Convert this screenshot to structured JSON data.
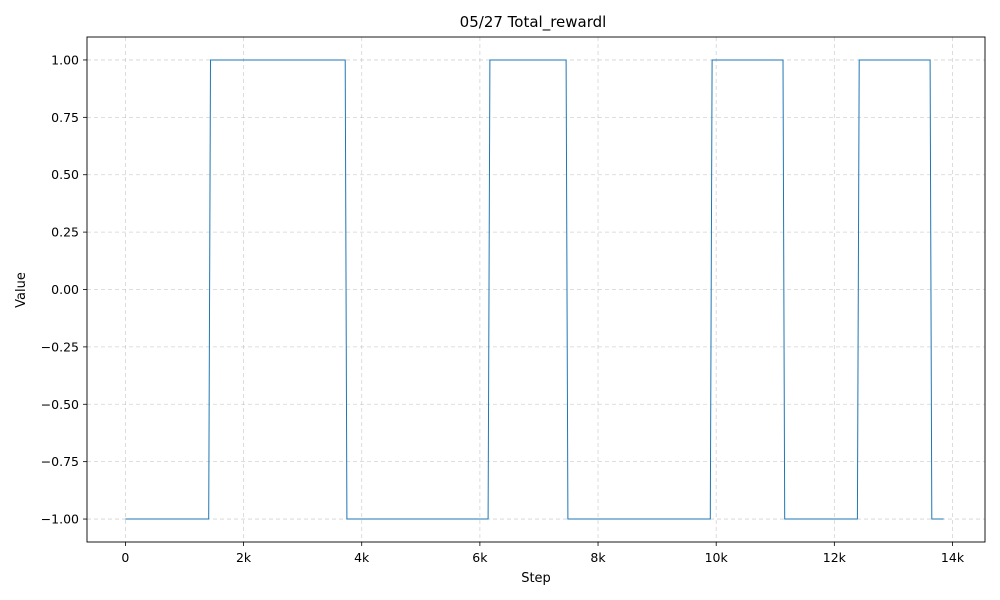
{
  "chart_data": {
    "type": "line",
    "title": "05/27  Total_rewardl",
    "xlabel": "Step",
    "ylabel": "Value",
    "xlim": [
      -650,
      14550
    ],
    "ylim": [
      -1.1,
      1.1
    ],
    "grid": true,
    "x_ticks": [
      {
        "value": 0,
        "label": "0"
      },
      {
        "value": 2000,
        "label": "2k"
      },
      {
        "value": 4000,
        "label": "4k"
      },
      {
        "value": 6000,
        "label": "6k"
      },
      {
        "value": 8000,
        "label": "8k"
      },
      {
        "value": 10000,
        "label": "10k"
      },
      {
        "value": 12000,
        "label": "12k"
      },
      {
        "value": 14000,
        "label": "14k"
      }
    ],
    "y_ticks": [
      {
        "value": 1.0,
        "label": "1.00"
      },
      {
        "value": 0.75,
        "label": "0.75"
      },
      {
        "value": 0.5,
        "label": "0.50"
      },
      {
        "value": 0.25,
        "label": "0.25"
      },
      {
        "value": 0.0,
        "label": "0.00"
      },
      {
        "value": -0.25,
        "label": "−0.25"
      },
      {
        "value": -0.5,
        "label": "−0.50"
      },
      {
        "value": -0.75,
        "label": "−0.75"
      },
      {
        "value": -1.0,
        "label": "−1.00"
      }
    ],
    "series": [
      {
        "color": "#1f77b4",
        "x": [
          0,
          1410,
          1440,
          3720,
          3750,
          6140,
          6170,
          7460,
          7490,
          9900,
          9930,
          11130,
          11160,
          12390,
          12420,
          13620,
          13650,
          13850
        ],
        "y": [
          -1,
          -1,
          1,
          1,
          -1,
          -1,
          1,
          1,
          -1,
          -1,
          1,
          1,
          -1,
          -1,
          1,
          1,
          -1,
          -1
        ]
      }
    ]
  }
}
